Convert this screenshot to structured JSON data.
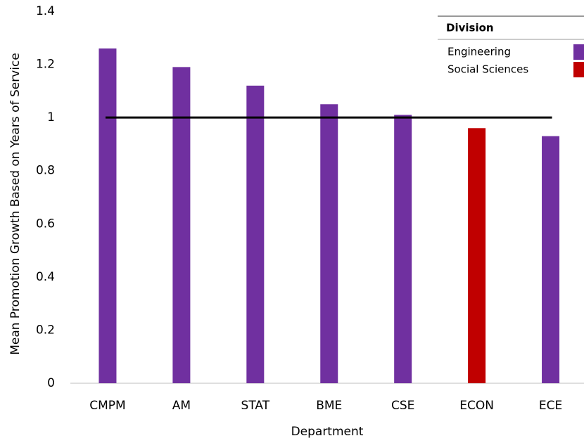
{
  "chart_data": {
    "type": "bar",
    "x_label": "Department",
    "y_label": "Mean Promotion Growth Based on Years of Service",
    "categories": [
      "CMPM",
      "AM",
      "STAT",
      "BME",
      "CSE",
      "ECON",
      "ECE"
    ],
    "series": [
      {
        "name": "Engineering",
        "color": "#7030a0",
        "values": [
          1.26,
          1.19,
          1.12,
          1.05,
          1.01,
          null,
          0.93
        ]
      },
      {
        "name": "Social Sciences",
        "color": "#c00000",
        "values": [
          null,
          null,
          null,
          null,
          null,
          0.96,
          null
        ]
      }
    ],
    "legend_title": "Division",
    "legend_position": "top-right",
    "reference_line": 1,
    "ylim": [
      0,
      1.4
    ],
    "yticks": [
      0,
      0.2,
      0.4,
      0.6,
      0.8,
      1,
      1.2,
      1.4
    ],
    "grid": false
  }
}
